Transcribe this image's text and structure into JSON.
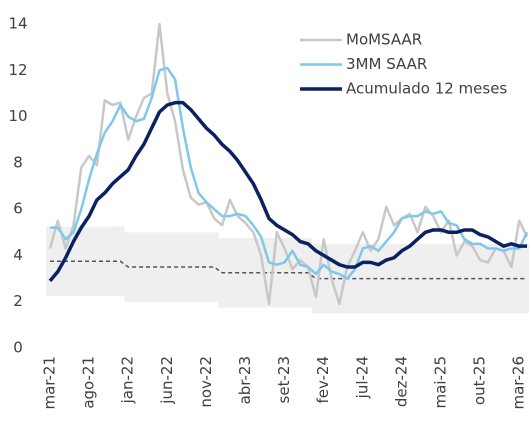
{
  "chart_data": {
    "type": "line",
    "categories": [
      "mar-21",
      null,
      null,
      null,
      null,
      "ago-21",
      null,
      null,
      null,
      null,
      "jan-22",
      null,
      null,
      null,
      null,
      "jun-22",
      null,
      null,
      null,
      null,
      "nov-22",
      null,
      null,
      null,
      null,
      "abr-23",
      null,
      null,
      null,
      null,
      "set-23",
      null,
      null,
      null,
      null,
      "fev-24",
      null,
      null,
      null,
      null,
      "jul-24",
      null,
      null,
      null,
      null,
      "dez-24",
      null,
      null,
      null,
      null,
      "mai-25",
      null,
      null,
      null,
      null,
      "out-25",
      null,
      null,
      null,
      null,
      "mar-26",
      null
    ],
    "series": [
      {
        "name": "MoMSAAR",
        "color": "#c8c8c8",
        "width": 2.5,
        "values": [
          4.3,
          5.5,
          4.3,
          5.3,
          7.8,
          8.3,
          7.9,
          10.7,
          10.5,
          10.6,
          9.0,
          10.0,
          10.8,
          11.0,
          14.0,
          11.0,
          9.8,
          7.7,
          6.5,
          6.2,
          6.3,
          5.6,
          5.3,
          6.4,
          5.7,
          5.4,
          5.0,
          4.0,
          1.9,
          5.0,
          4.3,
          3.4,
          3.8,
          3.5,
          2.2,
          4.7,
          3.0,
          1.9,
          3.5,
          4.2,
          5.0,
          4.2,
          4.7,
          6.1,
          5.3,
          5.6,
          5.8,
          5.0,
          6.1,
          5.7,
          5.0,
          5.5,
          4.0,
          4.6,
          4.4,
          3.8,
          3.7,
          4.3,
          4.2,
          3.5,
          5.5,
          4.8
        ]
      },
      {
        "name": "3MM SAAR",
        "color": "#7ec8e8",
        "width": 2.5,
        "values": [
          5.2,
          5.2,
          4.7,
          5.0,
          6.0,
          7.3,
          8.4,
          9.3,
          9.8,
          10.5,
          10.0,
          9.8,
          9.9,
          10.8,
          12.0,
          12.1,
          11.6,
          9.5,
          7.8,
          6.7,
          6.3,
          6.0,
          5.7,
          5.7,
          5.8,
          5.7,
          5.3,
          4.8,
          3.7,
          3.6,
          3.7,
          4.2,
          3.6,
          3.5,
          3.2,
          3.6,
          3.3,
          3.2,
          3.0,
          3.4,
          4.3,
          4.4,
          4.2,
          4.6,
          5.0,
          5.6,
          5.7,
          5.7,
          5.9,
          5.8,
          5.9,
          5.4,
          5.3,
          4.7,
          4.5,
          4.5,
          4.3,
          4.3,
          4.2,
          4.3,
          4.3,
          5.0
        ]
      },
      {
        "name": "Acumulado 12 meses",
        "color": "#0c2260",
        "width": 3.5,
        "values": [
          2.9,
          3.3,
          3.9,
          4.6,
          5.2,
          5.7,
          6.4,
          6.7,
          7.1,
          7.4,
          7.7,
          8.3,
          8.8,
          9.5,
          10.2,
          10.5,
          10.6,
          10.6,
          10.3,
          9.9,
          9.5,
          9.2,
          8.8,
          8.5,
          8.1,
          7.6,
          7.1,
          6.4,
          5.6,
          5.3,
          5.1,
          4.9,
          4.6,
          4.5,
          4.2,
          4.0,
          3.8,
          3.6,
          3.5,
          3.5,
          3.7,
          3.7,
          3.6,
          3.8,
          3.9,
          4.2,
          4.4,
          4.7,
          5.0,
          5.1,
          5.1,
          5.0,
          5.0,
          5.1,
          5.1,
          4.9,
          4.8,
          4.6,
          4.4,
          4.5,
          4.4,
          4.4
        ]
      }
    ],
    "target": [
      3.75,
      3.75,
      3.75,
      3.75,
      3.75,
      3.75,
      3.75,
      3.75,
      3.75,
      3.75,
      3.5,
      3.5,
      3.5,
      3.5,
      3.5,
      3.5,
      3.5,
      3.5,
      3.5,
      3.5,
      3.5,
      3.5,
      3.25,
      3.25,
      3.25,
      3.25,
      3.25,
      3.25,
      3.25,
      3.25,
      3.25,
      3.25,
      3.25,
      3.25,
      3.0,
      3.0,
      3.0,
      3.0,
      3.0,
      3.0,
      3.0,
      3.0,
      3.0,
      3.0,
      3.0,
      3.0,
      3.0,
      3.0,
      3.0,
      3.0,
      3.0,
      3.0,
      3.0,
      3.0,
      3.0,
      3.0,
      3.0,
      3.0,
      3.0,
      3.0,
      3.0,
      3.0
    ],
    "target_color": "#555555",
    "band_upper": [
      5.25,
      5.25,
      5.25,
      5.25,
      5.25,
      5.25,
      5.25,
      5.25,
      5.25,
      5.25,
      5.0,
      5.0,
      5.0,
      5.0,
      5.0,
      5.0,
      5.0,
      5.0,
      5.0,
      5.0,
      5.0,
      5.0,
      4.75,
      4.75,
      4.75,
      4.75,
      4.75,
      4.75,
      4.75,
      4.75,
      4.75,
      4.75,
      4.75,
      4.75,
      4.5,
      4.5,
      4.5,
      4.5,
      4.5,
      4.5,
      4.5,
      4.5,
      4.5,
      4.5,
      4.5,
      4.5,
      4.5,
      4.5,
      4.5,
      4.5,
      4.5,
      4.5,
      4.5,
      4.5,
      4.5,
      4.5,
      4.5,
      4.5,
      4.5,
      4.5,
      4.5,
      4.5
    ],
    "band_lower": [
      2.25,
      2.25,
      2.25,
      2.25,
      2.25,
      2.25,
      2.25,
      2.25,
      2.25,
      2.25,
      2.0,
      2.0,
      2.0,
      2.0,
      2.0,
      2.0,
      2.0,
      2.0,
      2.0,
      2.0,
      2.0,
      2.0,
      1.75,
      1.75,
      1.75,
      1.75,
      1.75,
      1.75,
      1.75,
      1.75,
      1.75,
      1.75,
      1.75,
      1.75,
      1.5,
      1.5,
      1.5,
      1.5,
      1.5,
      1.5,
      1.5,
      1.5,
      1.5,
      1.5,
      1.5,
      1.5,
      1.5,
      1.5,
      1.5,
      1.5,
      1.5,
      1.5,
      1.5,
      1.5,
      1.5,
      1.5,
      1.5,
      1.5,
      1.5,
      1.5,
      1.5,
      1.5
    ],
    "band_color": "#efefef",
    "ylim": [
      0,
      14
    ],
    "yticks": [
      0,
      2,
      4,
      6,
      8,
      10,
      12,
      14
    ],
    "grid": false,
    "legend": "upper right"
  }
}
